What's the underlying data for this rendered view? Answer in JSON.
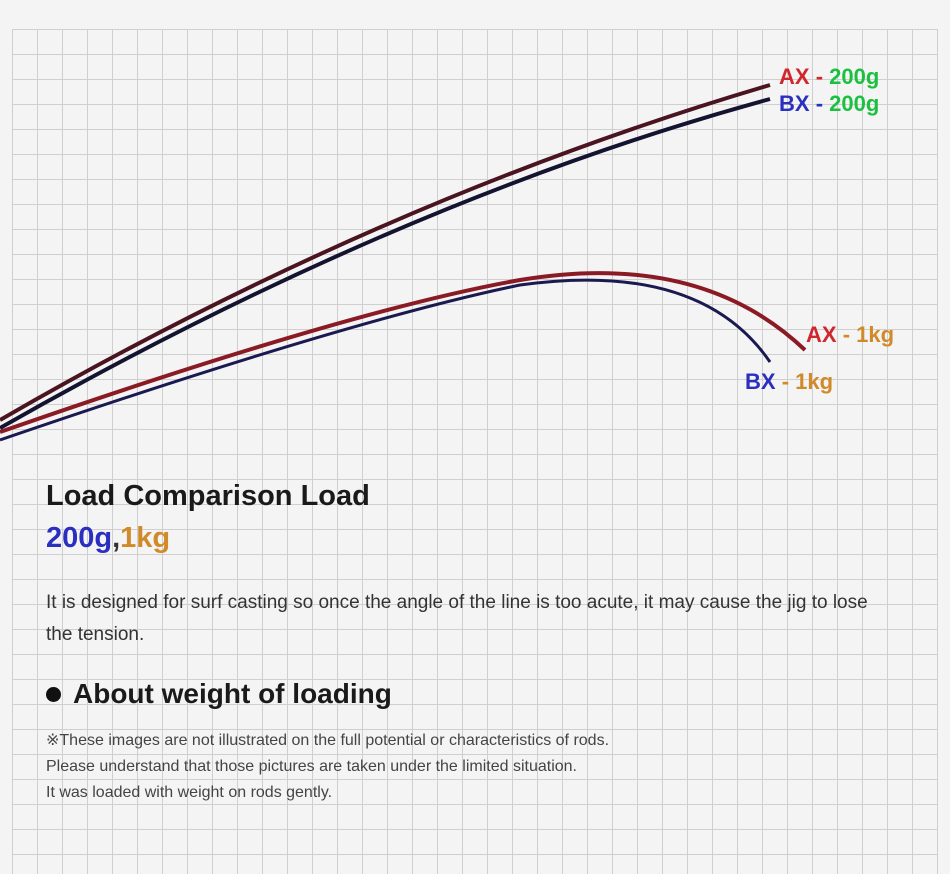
{
  "labels": {
    "ax200": {
      "rod": "AX",
      "sep": "-",
      "load": "200g"
    },
    "bx200": {
      "rod": "BX",
      "sep": "-",
      "load": "200g"
    },
    "ax1kg": {
      "rod": "AX",
      "sep": "-",
      "load": "1kg"
    },
    "bx1kg": {
      "rod": "BX",
      "sep": "-",
      "load": "1kg"
    }
  },
  "colors": {
    "ax": "#d0262e",
    "bx": "#2a2fc0",
    "g200": "#1cc040",
    "kg1": "#d08a2a"
  },
  "title": "Load Comparison Load",
  "subtitle": {
    "a": "200g",
    "sep": ",",
    "b": "1kg"
  },
  "description": "It is designed for surf casting so once the angle of the line is too acute, it may cause the jig to lose the tension.",
  "section": {
    "heading": "About weight of loading",
    "notes": [
      "※These images are not illustrated on the full potential or characteristics of rods.",
      "Please understand that those pictures are taken under the limited situation.",
      "It was loaded with weight on rods gently."
    ]
  }
}
